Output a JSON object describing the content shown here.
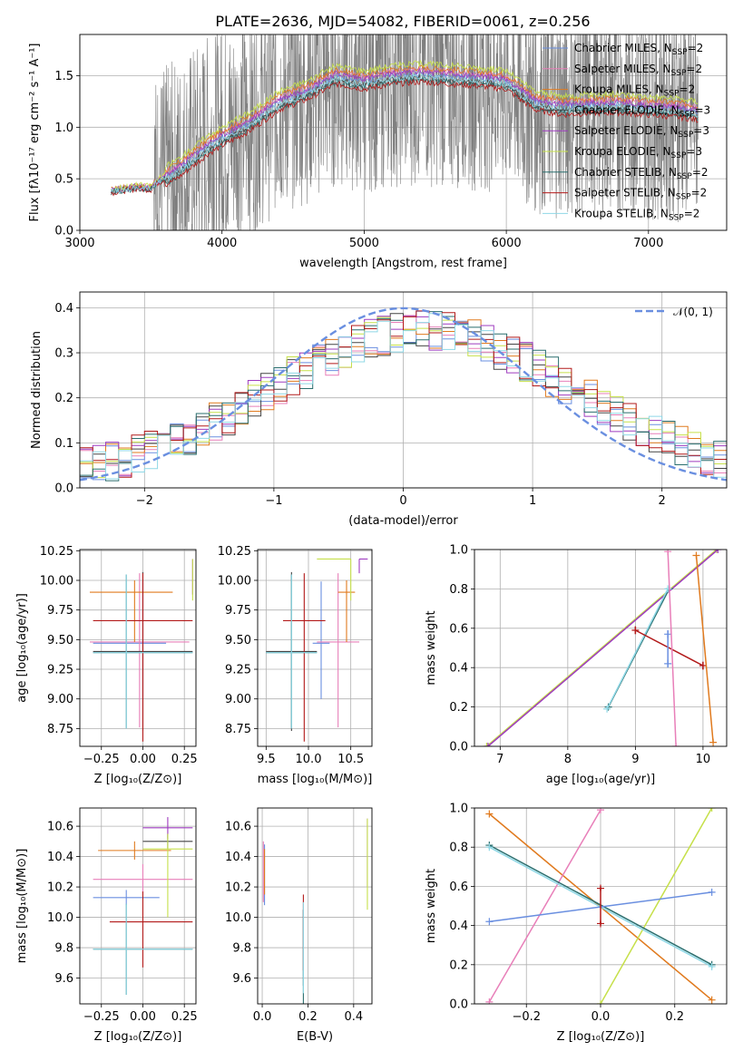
{
  "title": "PLATE=2636, MJD=54082, FIBERID=0061, z=0.256",
  "colors": {
    "Chabrier MILES": "#6a8fe0",
    "Salpeter MILES": "#e87fb9",
    "Kroupa MILES": "#e07a1e",
    "Chabrier ELODIE": "#444444",
    "Salpeter ELODIE": "#9e3bbf",
    "Kroupa ELODIE": "#c6e04a",
    "Chabrier STELIB": "#2a6e6e",
    "Salpeter STELIB": "#b21a1a",
    "Kroupa STELIB": "#8fd8e6",
    "data": "#7f7f7f",
    "gaussian": "#6a8fe0"
  },
  "chart_data": [
    {
      "id": "spectrum",
      "type": "line",
      "title": "PLATE=2636, MJD=54082, FIBERID=0061, z=0.256",
      "xlabel": "wavelength [Angstrom, rest frame]",
      "ylabel": "Flux [fλ10⁻¹⁷ erg cm⁻² s⁻¹ A⁻¹]",
      "xlim": [
        3000,
        7550
      ],
      "ylim": [
        0,
        1.9
      ],
      "xticks": [
        "3000",
        "4000",
        "5000",
        "6000",
        "7000"
      ],
      "yticks": [
        "0.0",
        "0.5",
        "1.0",
        "1.5"
      ],
      "legend_position": "top-right",
      "legend": [
        "Chabrier MILES, N_SSP=2",
        "Salpeter MILES, N_SSP=2",
        "Kroupa MILES, N_SSP=2",
        "Chabrier ELODIE, N_SSP=3",
        "Salpeter ELODIE, N_SSP=3",
        "Kroupa ELODIE, N_SSP=3",
        "Chabrier STELIB, N_SSP=2",
        "Salpeter STELIB, N_SSP=2",
        "Kroupa STELIB, N_SSP=2"
      ],
      "data_envelope": {
        "x": [
          3220,
          3300,
          3400,
          3500,
          3520,
          3700,
          3900,
          4000,
          4200,
          4400,
          4600,
          4800,
          5000,
          5200,
          5400,
          5600,
          5800,
          6000,
          6200,
          6400,
          6600,
          6800,
          7000,
          7200,
          7350
        ],
        "y": [
          0.38,
          0.4,
          0.42,
          0.41,
          0.45,
          0.6,
          0.82,
          0.9,
          1.05,
          1.25,
          1.35,
          1.5,
          1.45,
          1.5,
          1.52,
          1.5,
          1.48,
          1.45,
          1.25,
          1.2,
          1.22,
          1.22,
          1.2,
          1.18,
          1.15
        ]
      },
      "model_series": [
        {
          "name": "Chabrier MILES",
          "offset": 0.0
        },
        {
          "name": "Salpeter MILES",
          "offset": 0.04
        },
        {
          "name": "Kroupa MILES",
          "offset": 0.06
        },
        {
          "name": "Chabrier ELODIE",
          "offset": -0.04
        },
        {
          "name": "Salpeter ELODIE",
          "offset": 0.02
        },
        {
          "name": "Kroupa ELODIE",
          "offset": 0.1
        },
        {
          "name": "Chabrier STELIB",
          "offset": -0.06
        },
        {
          "name": "Salpeter STELIB",
          "offset": -0.08
        },
        {
          "name": "Kroupa STELIB",
          "offset": -0.03
        }
      ]
    },
    {
      "id": "residuals",
      "type": "histogram",
      "xlabel": "(data-model)/error",
      "ylabel": "Normed distribution",
      "xlim": [
        -2.5,
        2.5
      ],
      "ylim": [
        0,
        0.435
      ],
      "xticks": [
        "−2",
        "−1",
        "0",
        "1",
        "2"
      ],
      "yticks": [
        "0.0",
        "0.1",
        "0.2",
        "0.3",
        "0.4"
      ],
      "legend_position": "top-right",
      "legend": [
        "𝒩(0, 1)"
      ],
      "bin_edges_start": -2.5,
      "bin_width": 0.1,
      "gaussian_label": "𝒩(0, 1)"
    },
    {
      "id": "age-vs-z",
      "type": "errorbar",
      "xlabel": "Z [log₁₀(Z/Z⊙)]",
      "ylabel": "age  [log₁₀(age/yr)]",
      "xlim": [
        -0.38,
        0.32
      ],
      "ylim": [
        8.6,
        10.26
      ],
      "xticks": [
        "−0.25",
        "0.00",
        "0.25"
      ],
      "yticks": [
        "8.75",
        "9.00",
        "9.25",
        "9.50",
        "9.75",
        "10.00",
        "10.25"
      ],
      "points": [
        {
          "name": "Chabrier MILES",
          "x": 0.0,
          "xe": [
            0.3,
            0.14
          ],
          "y": 9.47,
          "ye": [
            0.47,
            0.52
          ]
        },
        {
          "name": "Salpeter MILES",
          "x": -0.02,
          "xe": [
            0.3,
            0.3
          ],
          "y": 9.48,
          "ye": [
            0.72,
            0.58
          ]
        },
        {
          "name": "Kroupa MILES",
          "x": -0.05,
          "xe": [
            0.27,
            0.23
          ],
          "y": 9.9,
          "ye": [
            0.42,
            0.1
          ]
        },
        {
          "name": "Chabrier ELODIE",
          "x": 0.0,
          "xe": [
            0.3,
            0.3
          ],
          "y": 9.4,
          "ye": [
            0.67,
            0.67
          ]
        },
        {
          "name": "Salpeter ELODIE",
          "x": 0.3,
          "xe": [
            0.0,
            0.0
          ],
          "y": 10.18,
          "ye": [
            0.3,
            0.0
          ]
        },
        {
          "name": "Kroupa ELODIE",
          "x": 0.3,
          "xe": [
            0.0,
            0.0
          ],
          "y": 10.18,
          "ye": [
            0.35,
            0.0
          ]
        },
        {
          "name": "Chabrier STELIB",
          "x": -0.1,
          "xe": [
            0.2,
            0.4
          ],
          "y": 9.39,
          "ye": [
            0.64,
            0.66
          ]
        },
        {
          "name": "Salpeter STELIB",
          "x": 0.0,
          "xe": [
            0.3,
            0.3
          ],
          "y": 9.66,
          "ye": [
            1.02,
            0.4
          ]
        },
        {
          "name": "Kroupa STELIB",
          "x": -0.1,
          "xe": [
            0.2,
            0.4
          ],
          "y": 9.39,
          "ye": [
            0.64,
            0.66
          ]
        }
      ]
    },
    {
      "id": "age-vs-mass",
      "type": "errorbar",
      "xlabel": "mass [log₁₀(M/M⊙)]",
      "ylabel": "",
      "xlim": [
        9.4,
        10.75
      ],
      "ylim": [
        8.6,
        10.26
      ],
      "xticks": [
        "9.5",
        "10.0",
        "10.5"
      ],
      "yticks": [
        "8.75",
        "9.00",
        "9.25",
        "9.50",
        "9.75",
        "10.00",
        "10.25"
      ],
      "points": [
        {
          "name": "Chabrier MILES",
          "x": 10.15,
          "xe": [
            0.1,
            0.1
          ],
          "y": 9.47,
          "ye": [
            0.47,
            0.52
          ]
        },
        {
          "name": "Salpeter MILES",
          "x": 10.35,
          "xe": [
            0.25,
            0.25
          ],
          "y": 9.48,
          "ye": [
            0.72,
            0.58
          ]
        },
        {
          "name": "Kroupa MILES",
          "x": 10.45,
          "xe": [
            0.1,
            0.1
          ],
          "y": 9.9,
          "ye": [
            0.42,
            0.1
          ]
        },
        {
          "name": "Chabrier ELODIE",
          "x": 9.8,
          "xe": [
            0.3,
            0.3
          ],
          "y": 9.4,
          "ye": [
            0.67,
            0.67
          ]
        },
        {
          "name": "Salpeter ELODIE",
          "x": 10.6,
          "xe": [
            0.0,
            0.1
          ],
          "y": 10.18,
          "ye": [
            0.12,
            0.0
          ]
        },
        {
          "name": "Kroupa ELODIE",
          "x": 10.5,
          "xe": [
            0.4,
            0.0
          ],
          "y": 10.18,
          "ye": [
            0.35,
            0.0
          ]
        },
        {
          "name": "Chabrier STELIB",
          "x": 9.8,
          "xe": [
            0.3,
            0.3
          ],
          "y": 9.39,
          "ye": [
            0.64,
            0.66
          ]
        },
        {
          "name": "Salpeter STELIB",
          "x": 9.95,
          "xe": [
            0.25,
            0.25
          ],
          "y": 9.66,
          "ye": [
            1.02,
            0.4
          ]
        },
        {
          "name": "Kroupa STELIB",
          "x": 9.8,
          "xe": [
            0.3,
            0.3
          ],
          "y": 9.39,
          "ye": [
            0.64,
            0.66
          ]
        }
      ]
    },
    {
      "id": "weight-vs-age",
      "type": "line",
      "xlabel": "age  [log₁₀(age/yr)]",
      "ylabel": "mass weight",
      "xlim": [
        6.62,
        10.35
      ],
      "ylim": [
        0,
        1.0
      ],
      "xticks": [
        "7",
        "8",
        "9",
        "10"
      ],
      "yticks": [
        "0.0",
        "0.2",
        "0.4",
        "0.6",
        "0.8",
        "1.0"
      ],
      "series": [
        {
          "name": "Kroupa ELODIE",
          "x": [
            6.8,
            10.2
          ],
          "y": [
            0.0,
            1.0
          ],
          "yerr": [
            0,
            0
          ]
        },
        {
          "name": "Salpeter ELODIE",
          "x": [
            6.82,
            10.22
          ],
          "y": [
            0.0,
            1.0
          ],
          "yerr": [
            0,
            0
          ]
        },
        {
          "name": "Chabrier STELIB",
          "x": [
            8.6,
            9.5
          ],
          "y": [
            0.2,
            0.8
          ],
          "yerr": [
            0,
            0
          ]
        },
        {
          "name": "Kroupa STELIB",
          "x": [
            8.58,
            9.48
          ],
          "y": [
            0.19,
            0.8
          ],
          "yerr": [
            0,
            0
          ]
        },
        {
          "name": "Salpeter STELIB",
          "x": [
            9.0,
            10.0
          ],
          "y": [
            0.59,
            0.41
          ],
          "yerr": [
            0.02,
            0.02
          ]
        },
        {
          "name": "Chabrier MILES",
          "x": [
            9.48,
            9.48
          ],
          "y": [
            0.57,
            0.42
          ],
          "yerr": [
            0.02,
            0.02
          ]
        },
        {
          "name": "Salpeter MILES",
          "x": [
            9.48,
            9.6
          ],
          "y": [
            0.99,
            0.0
          ],
          "yerr": [
            0,
            0
          ]
        },
        {
          "name": "Kroupa MILES",
          "x": [
            9.9,
            10.15
          ],
          "y": [
            0.97,
            0.02
          ],
          "yerr": [
            0,
            0
          ]
        }
      ]
    },
    {
      "id": "mass-vs-z",
      "type": "errorbar",
      "xlabel": "Z [log₁₀(Z/Z⊙)]",
      "ylabel": "mass [log₁₀(M/M⊙)]",
      "xlim": [
        -0.38,
        0.32
      ],
      "ylim": [
        9.43,
        10.72
      ],
      "xticks": [
        "−0.25",
        "0.00",
        "0.25"
      ],
      "yticks": [
        "9.6",
        "9.8",
        "10.0",
        "10.2",
        "10.4",
        "10.6"
      ],
      "points": [
        {
          "name": "Chabrier MILES",
          "x": -0.1,
          "xe": [
            0.2,
            0.2
          ],
          "y": 10.13,
          "ye": [
            0.05,
            0.05
          ]
        },
        {
          "name": "Salpeter MILES",
          "x": 0.0,
          "xe": [
            0.3,
            0.3
          ],
          "y": 10.25,
          "ye": [
            0.1,
            0.1
          ]
        },
        {
          "name": "Kroupa MILES",
          "x": -0.05,
          "xe": [
            0.22,
            0.22
          ],
          "y": 10.44,
          "ye": [
            0.06,
            0.06
          ]
        },
        {
          "name": "Chabrier ELODIE",
          "x": 0.15,
          "xe": [
            0.15,
            0.15
          ],
          "y": 10.5,
          "ye": [
            0.05,
            0.05
          ]
        },
        {
          "name": "Salpeter ELODIE",
          "x": 0.15,
          "xe": [
            0.15,
            0.15
          ],
          "y": 10.59,
          "ye": [
            0.07,
            0.07
          ]
        },
        {
          "name": "Kroupa ELODIE",
          "x": 0.15,
          "xe": [
            0.15,
            0.15
          ],
          "y": 10.45,
          "ye": [
            0.45,
            0.1
          ]
        },
        {
          "name": "Chabrier STELIB",
          "x": -0.1,
          "xe": [
            0.2,
            0.4
          ],
          "y": 9.79,
          "ye": [
            0.3,
            0.3
          ]
        },
        {
          "name": "Salpeter STELIB",
          "x": 0.0,
          "xe": [
            0.2,
            0.3
          ],
          "y": 9.97,
          "ye": [
            0.3,
            0.2
          ]
        },
        {
          "name": "Kroupa STELIB",
          "x": -0.1,
          "xe": [
            0.2,
            0.4
          ],
          "y": 9.79,
          "ye": [
            0.3,
            0.3
          ]
        }
      ]
    },
    {
      "id": "mass-vs-ebv",
      "type": "errorbar",
      "xlabel": "E(B-V)",
      "ylabel": "",
      "xlim": [
        -0.02,
        0.48
      ],
      "ylim": [
        9.43,
        10.72
      ],
      "xticks": [
        "0.0",
        "0.2",
        "0.4"
      ],
      "yticks": [
        "9.6",
        "9.8",
        "10.0",
        "10.2",
        "10.4",
        "10.6"
      ],
      "points": [
        {
          "name": "Chabrier MILES",
          "x": 0.01,
          "ye": [
            0.2,
            0.2
          ],
          "y": 10.28
        },
        {
          "name": "Salpeter MILES",
          "x": 0.005,
          "ye": [
            0.2,
            0.2
          ],
          "y": 10.3
        },
        {
          "name": "Kroupa MILES",
          "x": 0.01,
          "ye": [
            0.15,
            0.15
          ],
          "y": 10.3
        },
        {
          "name": "Chabrier ELODIE",
          "x": 0.18,
          "ye": [
            0.5,
            0.0
          ],
          "y": 10.05
        },
        {
          "name": "Salpeter ELODIE",
          "x": 0.46,
          "ye": [
            0.35,
            0.1
          ],
          "y": 10.55
        },
        {
          "name": "Kroupa ELODIE",
          "x": 0.46,
          "ye": [
            0.5,
            0.1
          ],
          "y": 10.55
        },
        {
          "name": "Chabrier STELIB",
          "x": 0.18,
          "ye": [
            0.45,
            0.25
          ],
          "y": 9.8
        },
        {
          "name": "Salpeter STELIB",
          "x": 0.18,
          "ye": [
            0.3,
            0.2
          ],
          "y": 9.95
        },
        {
          "name": "Kroupa STELIB",
          "x": 0.18,
          "ye": [
            0.3,
            0.3
          ],
          "y": 9.8
        }
      ]
    },
    {
      "id": "weight-vs-z",
      "type": "line",
      "xlabel": "Z [log₁₀(Z/Z⊙)]",
      "ylabel": "mass weight",
      "xlim": [
        -0.34,
        0.34
      ],
      "ylim": [
        0,
        1.0
      ],
      "xticks": [
        "−0.2",
        "0.0",
        "0.2"
      ],
      "yticks": [
        "0.0",
        "0.2",
        "0.4",
        "0.6",
        "0.8",
        "1.0"
      ],
      "series": [
        {
          "name": "Kroupa MILES",
          "x": [
            -0.3,
            0.3
          ],
          "y": [
            0.97,
            0.02
          ],
          "yerr": [
            0,
            0
          ]
        },
        {
          "name": "Salpeter MILES",
          "x": [
            -0.3,
            0.0
          ],
          "y": [
            0.01,
            0.99
          ],
          "yerr": [
            0,
            0
          ]
        },
        {
          "name": "Kroupa ELODIE",
          "x": [
            0.0,
            0.3
          ],
          "y": [
            0.0,
            1.0
          ],
          "yerr": [
            0,
            0
          ]
        },
        {
          "name": "Chabrier STELIB",
          "x": [
            -0.3,
            0.3
          ],
          "y": [
            0.81,
            0.2
          ],
          "yerr": [
            0,
            0
          ]
        },
        {
          "name": "Kroupa STELIB",
          "x": [
            -0.3,
            0.3
          ],
          "y": [
            0.8,
            0.19
          ],
          "yerr": [
            0,
            0
          ]
        },
        {
          "name": "Chabrier MILES",
          "x": [
            -0.3,
            0.3
          ],
          "y": [
            0.42,
            0.57
          ],
          "yerr": [
            0,
            0
          ]
        },
        {
          "name": "Salpeter STELIB",
          "x": [
            0.0,
            0.0
          ],
          "y": [
            0.59,
            0.41
          ],
          "yerr": [
            0.01,
            0.01
          ]
        }
      ]
    }
  ]
}
